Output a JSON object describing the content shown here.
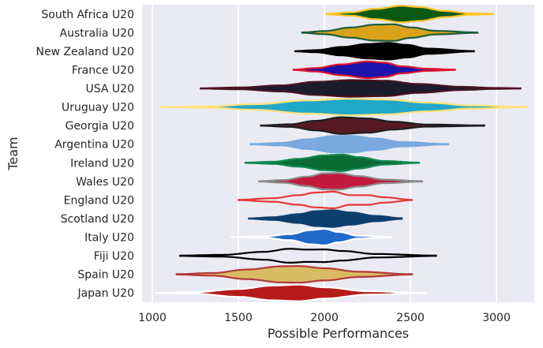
{
  "chart_data": {
    "type": "violin",
    "orientation": "horizontal",
    "xlabel": "Possible Performances",
    "ylabel": "Team",
    "xlim": [
      940,
      3220
    ],
    "xticks": [
      1000,
      1500,
      2000,
      2500,
      3000
    ],
    "grid": true,
    "background": "#eaeaf2",
    "gridcolor": "#ffffff",
    "categories": [
      "South Africa U20",
      "Australia U20",
      "New Zealand U20",
      "France U20",
      "USA U20",
      "Uruguay U20",
      "Georgia U20",
      "Argentina U20",
      "Ireland U20",
      "Wales U20",
      "England U20",
      "Scotland U20",
      "Italy U20",
      "Fiji U20",
      "Spain U20",
      "Japan U20"
    ],
    "series": [
      {
        "name": "South Africa U20",
        "fill": "#0a5a14",
        "edge": "#ffc425",
        "open": false,
        "density": [
          [
            2010,
            0.02
          ],
          [
            2150,
            0.18
          ],
          [
            2300,
            0.6
          ],
          [
            2450,
            0.95
          ],
          [
            2550,
            0.8
          ],
          [
            2700,
            0.35
          ],
          [
            2850,
            0.08
          ],
          [
            2980,
            0.02
          ]
        ]
      },
      {
        "name": "Australia U20",
        "fill": "#d8a31b",
        "edge": "#1e5e3c",
        "open": false,
        "density": [
          [
            1870,
            0.02
          ],
          [
            2000,
            0.18
          ],
          [
            2150,
            0.58
          ],
          [
            2300,
            0.92
          ],
          [
            2400,
            0.95
          ],
          [
            2500,
            0.6
          ],
          [
            2650,
            0.2
          ],
          [
            2890,
            0.02
          ]
        ]
      },
      {
        "name": "New Zealand U20",
        "fill": "#000000",
        "edge": "#000000",
        "open": false,
        "density": [
          [
            1830,
            0.02
          ],
          [
            1950,
            0.12
          ],
          [
            2100,
            0.48
          ],
          [
            2250,
            0.82
          ],
          [
            2370,
            0.95
          ],
          [
            2480,
            0.72
          ],
          [
            2600,
            0.3
          ],
          [
            2870,
            0.02
          ]
        ]
      },
      {
        "name": "France U20",
        "fill": "#1c13ad",
        "edge": "#e0122e",
        "open": false,
        "density": [
          [
            1820,
            0.02
          ],
          [
            1950,
            0.2
          ],
          [
            2100,
            0.62
          ],
          [
            2250,
            0.95
          ],
          [
            2350,
            0.82
          ],
          [
            2450,
            0.4
          ],
          [
            2600,
            0.12
          ],
          [
            2760,
            0.02
          ]
        ]
      },
      {
        "name": "USA U20",
        "fill": "#1a1c2c",
        "edge": "#4a1320",
        "open": false,
        "density": [
          [
            1280,
            0.02
          ],
          [
            1500,
            0.1
          ],
          [
            1750,
            0.35
          ],
          [
            1950,
            0.75
          ],
          [
            2150,
            0.95
          ],
          [
            2350,
            0.88
          ],
          [
            2550,
            0.5
          ],
          [
            2800,
            0.18
          ],
          [
            3000,
            0.05
          ],
          [
            3140,
            0.02
          ]
        ]
      },
      {
        "name": "Uruguay U20",
        "fill": "#21a7c8",
        "edge": "#ffe37a",
        "open": false,
        "density": [
          [
            1050,
            0.01
          ],
          [
            1300,
            0.06
          ],
          [
            1600,
            0.32
          ],
          [
            1900,
            0.75
          ],
          [
            2150,
            0.95
          ],
          [
            2350,
            0.85
          ],
          [
            2600,
            0.5
          ],
          [
            2850,
            0.18
          ],
          [
            3180,
            0.01
          ]
        ]
      },
      {
        "name": "Georgia U20",
        "fill": "#571a22",
        "edge": "#1e1e22",
        "open": false,
        "density": [
          [
            1630,
            0.02
          ],
          [
            1800,
            0.15
          ],
          [
            1950,
            0.55
          ],
          [
            2100,
            0.95
          ],
          [
            2250,
            0.82
          ],
          [
            2400,
            0.45
          ],
          [
            2600,
            0.12
          ],
          [
            2930,
            0.02
          ]
        ]
      },
      {
        "name": "Argentina U20",
        "fill": "#7aaadd",
        "edge": "#7aaadd",
        "open": false,
        "density": [
          [
            1570,
            0.02
          ],
          [
            1750,
            0.15
          ],
          [
            1900,
            0.55
          ],
          [
            2050,
            0.92
          ],
          [
            2150,
            0.95
          ],
          [
            2300,
            0.65
          ],
          [
            2450,
            0.25
          ],
          [
            2720,
            0.02
          ]
        ]
      },
      {
        "name": "Ireland U20",
        "fill": "#0b6b34",
        "edge": "#0e8a52",
        "open": false,
        "density": [
          [
            1540,
            0.02
          ],
          [
            1700,
            0.12
          ],
          [
            1850,
            0.45
          ],
          [
            2000,
            0.85
          ],
          [
            2100,
            0.95
          ],
          [
            2200,
            0.65
          ],
          [
            2350,
            0.2
          ],
          [
            2550,
            0.02
          ]
        ]
      },
      {
        "name": "Wales U20",
        "fill": "#c4193f",
        "edge": "#8a8a8a",
        "open": false,
        "density": [
          [
            1620,
            0.02
          ],
          [
            1760,
            0.15
          ],
          [
            1900,
            0.55
          ],
          [
            2000,
            0.92
          ],
          [
            2080,
            0.95
          ],
          [
            2200,
            0.6
          ],
          [
            2350,
            0.2
          ],
          [
            2570,
            0.02
          ]
        ]
      },
      {
        "name": "England U20",
        "fill": "#ffffff",
        "edge": "#e53939",
        "open": true,
        "density": [
          [
            1500,
            0.02
          ],
          [
            1700,
            0.2
          ],
          [
            1850,
            0.55
          ],
          [
            1950,
            0.85
          ],
          [
            2050,
            0.95
          ],
          [
            2150,
            0.55
          ],
          [
            2250,
            0.55
          ],
          [
            2350,
            0.3
          ],
          [
            2510,
            0.02
          ]
        ]
      },
      {
        "name": "Scotland U20",
        "fill": "#0e3e6e",
        "edge": "#0e3e6e",
        "open": false,
        "density": [
          [
            1560,
            0.02
          ],
          [
            1700,
            0.15
          ],
          [
            1850,
            0.5
          ],
          [
            1950,
            0.85
          ],
          [
            2050,
            0.95
          ],
          [
            2150,
            0.7
          ],
          [
            2300,
            0.3
          ],
          [
            2450,
            0.04
          ]
        ]
      },
      {
        "name": "Italy U20",
        "fill": "#1f69c8",
        "edge": "#ffffff",
        "open": false,
        "density": [
          [
            1460,
            0.02
          ],
          [
            1650,
            0.08
          ],
          [
            1800,
            0.35
          ],
          [
            1920,
            0.82
          ],
          [
            2000,
            0.95
          ],
          [
            2080,
            0.6
          ],
          [
            2200,
            0.15
          ],
          [
            2390,
            0.02
          ]
        ]
      },
      {
        "name": "Fiji U20",
        "fill": "#ffffff",
        "edge": "#000000",
        "open": true,
        "density": [
          [
            1160,
            0.02
          ],
          [
            1400,
            0.1
          ],
          [
            1650,
            0.45
          ],
          [
            1800,
            0.8
          ],
          [
            1900,
            0.7
          ],
          [
            2000,
            0.72
          ],
          [
            2100,
            0.55
          ],
          [
            2300,
            0.2
          ],
          [
            2650,
            0.02
          ]
        ]
      },
      {
        "name": "Spain U20",
        "fill": "#d9bb63",
        "edge": "#b1393a",
        "open": false,
        "density": [
          [
            1140,
            0.02
          ],
          [
            1350,
            0.15
          ],
          [
            1550,
            0.55
          ],
          [
            1750,
            0.92
          ],
          [
            1850,
            0.95
          ],
          [
            2000,
            0.7
          ],
          [
            2200,
            0.3
          ],
          [
            2510,
            0.02
          ]
        ]
      },
      {
        "name": "Japan U20",
        "fill": "#b61b1b",
        "edge": "#ffffff",
        "open": false,
        "density": [
          [
            1020,
            0.01
          ],
          [
            1250,
            0.1
          ],
          [
            1500,
            0.45
          ],
          [
            1700,
            0.85
          ],
          [
            1850,
            0.95
          ],
          [
            2000,
            0.65
          ],
          [
            2250,
            0.2
          ],
          [
            2590,
            0.01
          ]
        ]
      }
    ]
  }
}
